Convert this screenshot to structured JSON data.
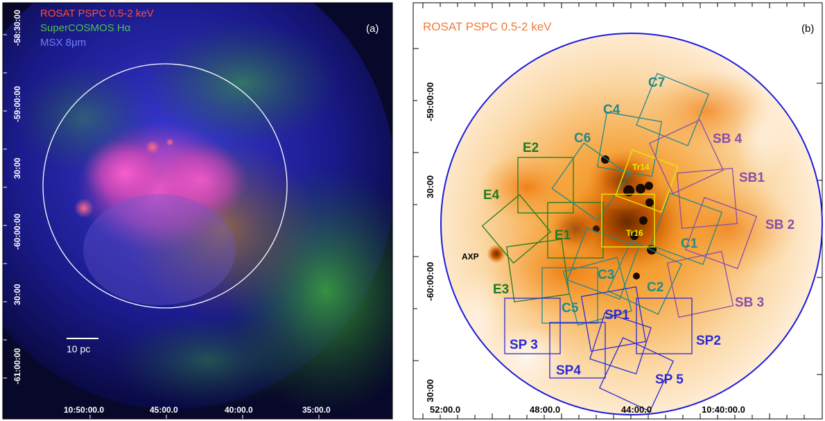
{
  "panel_a": {
    "legend": {
      "line1": "ROSAT PSPC 0.5-2 keV",
      "line2": "SuperCOSMOS Hα",
      "line3": "MSX 8μm"
    },
    "panel_label": "(a)",
    "scale_bar_label": "10 pc",
    "y_ticks": [
      "-58:30:00",
      "-59:00:00",
      "30:00",
      "-60:00:00",
      "30:00",
      "-61:00:00"
    ],
    "x_ticks": [
      "10:50:00.0",
      "45:00.0",
      "40:00.0",
      "35:00.0"
    ],
    "colors": {
      "legend1": "#ff4d3a",
      "legend2": "#4ec04a",
      "legend3": "#6f7dff",
      "circle": "#ffffff"
    }
  },
  "panel_b": {
    "title": "ROSAT PSPC 0.5-2 keV",
    "panel_label": "(b)",
    "y_ticks": [
      "-59:00:00",
      "30:00",
      "-60:00:00",
      "30:00"
    ],
    "x_ticks": [
      "52:00.0",
      "48:00.0",
      "44:00.0",
      "10:40:00.0"
    ],
    "colors": {
      "circle": "#1a1adc",
      "east": "#1f7a1f",
      "center": "#1f8a8a",
      "south": "#2a2ad6",
      "southwest": "#8a4ea8",
      "tr": "#e8e800",
      "title": "#f07a3a"
    },
    "labels": {
      "E1": "E1",
      "E2": "E2",
      "E3": "E3",
      "E4": "E4",
      "C1": "C1",
      "C2": "C2",
      "C3": "C3",
      "C4": "C4",
      "C5": "C5",
      "C6": "C6",
      "C7": "C7",
      "SP1": "SP1",
      "SP2": "SP2",
      "SP3": "SP 3",
      "SP4": "SP4",
      "SP5": "SP 5",
      "SB1": "SB1",
      "SB2": "SB 2",
      "SB3": "SB 3",
      "SB4": "SB 4",
      "Tr14": "Tr14",
      "Tr16": "Tr16",
      "AXP": "AXP"
    }
  }
}
